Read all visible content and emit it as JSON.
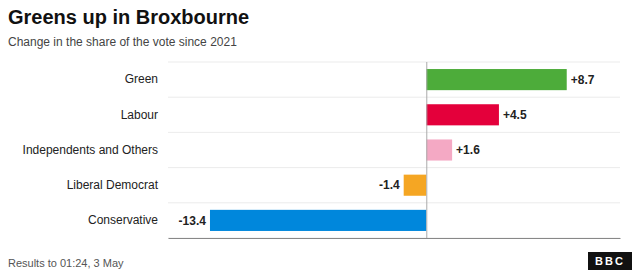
{
  "chart_data": {
    "type": "bar",
    "orientation": "horizontal",
    "title": "Greens up in Broxbourne",
    "subtitle": "Change in the share of the vote since 2021",
    "annotations": [
      "Results to 01:24,  3 May",
      "BBC"
    ],
    "categories": [
      "Green",
      "Labour",
      "Independents and Others",
      "Liberal Democrat",
      "Conservative"
    ],
    "values": [
      8.7,
      4.5,
      1.6,
      -1.4,
      -13.4
    ],
    "value_labels": [
      "+8.7",
      "+4.5",
      "+1.6",
      "-1.4",
      "-13.4"
    ],
    "data_labels": true,
    "colors": [
      "#4dac3a",
      "#e4003b",
      "#f4a9c4",
      "#f5a623",
      "#0087dc"
    ],
    "xlim": [
      -16,
      12
    ],
    "xticks": [
      0
    ],
    "grid": true,
    "tick_labels": "y"
  }
}
